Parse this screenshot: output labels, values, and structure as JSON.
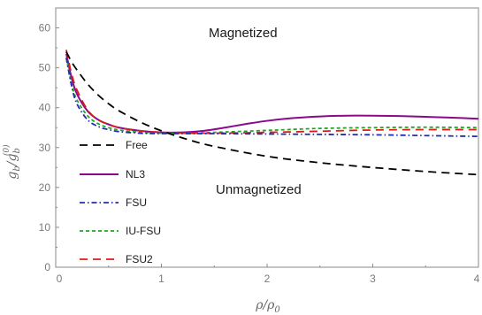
{
  "chart_data": {
    "type": "line",
    "title": "",
    "x_min_tick_label": "0",
    "xlim": [
      0,
      4
    ],
    "ylim": [
      0,
      65
    ],
    "xticks": [
      {
        "value": 0,
        "label": "0"
      },
      {
        "value": 1,
        "label": "1"
      },
      {
        "value": 2,
        "label": "2"
      },
      {
        "value": 3,
        "label": "3"
      },
      {
        "value": 4,
        "label": "4"
      }
    ],
    "yticks": [
      {
        "value": 0,
        "label": "0"
      },
      {
        "value": 10,
        "label": "10"
      },
      {
        "value": 20,
        "label": "20"
      },
      {
        "value": 30,
        "label": "30"
      },
      {
        "value": 40,
        "label": "40"
      },
      {
        "value": 50,
        "label": "50"
      },
      {
        "value": 60,
        "label": "60"
      }
    ],
    "xlabel": {
      "main": "ρ/ρ",
      "sub": "0"
    },
    "ylabel": {
      "main": "g",
      "sub": "b",
      "mid": "/g",
      "sub2": "b",
      "sup2": "(0)"
    },
    "annotations": [
      {
        "text": "Magnetized",
        "x": 1.55,
        "y": 59
      },
      {
        "text": "Unmagnetized",
        "x": 1.55,
        "y": 19.2
      }
    ],
    "legend_placement": "left",
    "series": [
      {
        "name": "Free",
        "color": "#000000",
        "dash": "dashed",
        "x": [
          0.1,
          0.15,
          0.2,
          0.3,
          0.4,
          0.5,
          0.6,
          0.8,
          1.0,
          1.25,
          1.5,
          2.0,
          2.5,
          3.0,
          3.5,
          4.0
        ],
        "y": [
          54,
          51.5,
          49.5,
          46,
          43.2,
          41,
          39.2,
          36.4,
          34.2,
          32,
          30.3,
          27.8,
          26.2,
          25,
          24,
          23.2
        ]
      },
      {
        "name": "NL3",
        "color": "#8b0a8b",
        "dash": "solid",
        "x": [
          0.1,
          0.15,
          0.2,
          0.3,
          0.4,
          0.5,
          0.6,
          0.8,
          1.0,
          1.2,
          1.4,
          1.6,
          1.8,
          2.0,
          2.25,
          2.5,
          2.75,
          3.0,
          3.25,
          3.5,
          3.75,
          4.0
        ],
        "y": [
          53.5,
          47.5,
          43.5,
          39.2,
          37,
          35.8,
          35,
          34.2,
          33.8,
          33.8,
          34.2,
          35,
          35.9,
          36.7,
          37.4,
          37.8,
          38,
          38,
          37.9,
          37.7,
          37.5,
          37.2
        ]
      },
      {
        "name": "FSU",
        "color": "#1f2fb0",
        "dash": "dashdot",
        "x": [
          0.1,
          0.15,
          0.2,
          0.3,
          0.4,
          0.5,
          0.6,
          0.8,
          1.0,
          1.25,
          1.5,
          2.0,
          2.5,
          3.0,
          3.5,
          4.0
        ],
        "y": [
          52.5,
          45.5,
          41,
          37,
          35.3,
          34.5,
          34,
          33.6,
          33.5,
          33.5,
          33.5,
          33.4,
          33.3,
          33.2,
          33,
          32.8
        ]
      },
      {
        "name": "IU-FSU",
        "color": "#1fa81f",
        "dash": "short-dashed",
        "x": [
          0.1,
          0.15,
          0.2,
          0.3,
          0.4,
          0.5,
          0.6,
          0.8,
          1.0,
          1.25,
          1.5,
          2.0,
          2.5,
          3.0,
          3.5,
          4.0
        ],
        "y": [
          52.5,
          46,
          42,
          38,
          36,
          35,
          34.4,
          33.8,
          33.6,
          33.6,
          33.8,
          34.3,
          34.8,
          35,
          35.1,
          35
        ]
      },
      {
        "name": "FSU2",
        "color": "#e01a1a",
        "dash": "dashed",
        "x": [
          0.1,
          0.15,
          0.2,
          0.3,
          0.4,
          0.5,
          0.6,
          0.8,
          1.0,
          1.25,
          1.5,
          2.0,
          2.5,
          3.0,
          3.5,
          4.0
        ],
        "y": [
          54.5,
          48.5,
          44.5,
          39.5,
          37,
          35.8,
          35,
          34.2,
          33.8,
          33.6,
          33.6,
          33.8,
          34.1,
          34.4,
          34.5,
          34.5
        ]
      }
    ]
  }
}
